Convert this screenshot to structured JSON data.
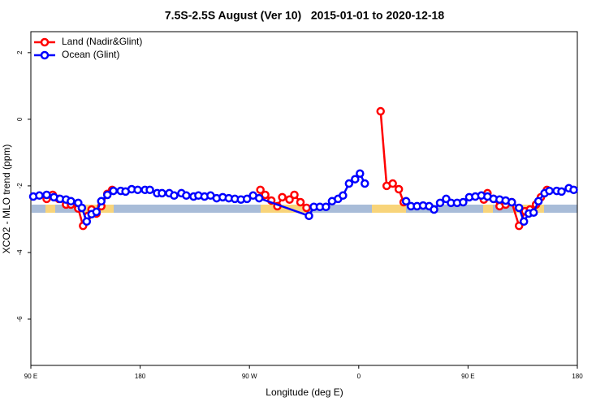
{
  "chart_data": {
    "type": "line",
    "title": "7.5S-2.5S August (Ver 10)   2015-01-01 to 2020-12-18",
    "xlabel": "Longitude (deg E)",
    "ylabel": "XCO2 - MLO trend (ppm)",
    "xlim": [
      90,
      540
    ],
    "ylim": [
      -7.39,
      2.63
    ],
    "xticks": [
      {
        "value": 90,
        "label": "90 E"
      },
      180,
      {
        "value": 270,
        "label": "90 W"
      },
      {
        "value": 360,
        "label": "0"
      },
      {
        "value": 450,
        "label": "90 E"
      },
      {
        "value": 540,
        "label": "180"
      }
    ],
    "yticks": [
      2,
      0,
      -2,
      -4,
      -6
    ],
    "legend": "topleft",
    "series": [
      {
        "name": "Land (Nadir&Glint)",
        "color": "#ff0000",
        "x": [
          103,
          108,
          113,
          119,
          123,
          129,
          133,
          137,
          140,
          144,
          148,
          153,
          157,
          null,
          279,
          283,
          288,
          293,
          297,
          303,
          307,
          312,
          317,
          null,
          378,
          383,
          388,
          393,
          397,
          null,
          463,
          466,
          471,
          476,
          481,
          486,
          492,
          497,
          501,
          506,
          510,
          515
        ],
        "values": [
          -2.39,
          -2.27,
          -2.39,
          -2.56,
          -2.56,
          -2.68,
          -3.2,
          -2.9,
          -2.71,
          -2.83,
          -2.61,
          -2.24,
          -2.12,
          null,
          -2.12,
          -2.27,
          -2.44,
          -2.61,
          -2.34,
          -2.41,
          -2.27,
          -2.49,
          -2.66,
          null,
          0.24,
          -2.0,
          -1.93,
          -2.1,
          -2.49,
          null,
          -2.41,
          -2.22,
          -2.39,
          -2.61,
          -2.56,
          -2.49,
          -3.2,
          -2.76,
          -2.71,
          -2.56,
          -2.34,
          -2.12
        ]
      },
      {
        "name": "Ocean (Glint)",
        "color": "#0000ff",
        "x": [
          92,
          97,
          103,
          109,
          114,
          119,
          123,
          129,
          132,
          136,
          140,
          144,
          148,
          153,
          158,
          164,
          168,
          173,
          178,
          184,
          188,
          194,
          198,
          204,
          208,
          214,
          218,
          224,
          228,
          233,
          238,
          243,
          248,
          253,
          258,
          263,
          268,
          273,
          278,
          319,
          323,
          328,
          333,
          338,
          343,
          347,
          352,
          357,
          361,
          365,
          null,
          399,
          403,
          408,
          413,
          418,
          422,
          427,
          432,
          436,
          441,
          446,
          451,
          456,
          461,
          466,
          471,
          476,
          481,
          486,
          492,
          496,
          500,
          504,
          508,
          513,
          517,
          523,
          527,
          533,
          537
        ],
        "values": [
          -2.32,
          -2.29,
          -2.27,
          -2.34,
          -2.39,
          -2.41,
          -2.46,
          -2.51,
          -2.66,
          -3.07,
          -2.85,
          -2.78,
          -2.46,
          -2.27,
          -2.15,
          -2.15,
          -2.17,
          -2.1,
          -2.12,
          -2.12,
          -2.12,
          -2.22,
          -2.22,
          -2.22,
          -2.29,
          -2.22,
          -2.29,
          -2.32,
          -2.29,
          -2.32,
          -2.29,
          -2.37,
          -2.34,
          -2.37,
          -2.39,
          -2.41,
          -2.39,
          -2.29,
          -2.37,
          -2.9,
          -2.63,
          -2.63,
          -2.63,
          -2.46,
          -2.39,
          -2.29,
          -1.93,
          -1.8,
          -1.63,
          -1.93,
          null,
          -2.46,
          -2.61,
          -2.61,
          -2.59,
          -2.61,
          -2.71,
          -2.51,
          -2.39,
          -2.51,
          -2.51,
          -2.49,
          -2.34,
          -2.32,
          -2.29,
          -2.32,
          -2.39,
          -2.41,
          -2.44,
          -2.49,
          -2.66,
          -3.07,
          -2.83,
          -2.8,
          -2.46,
          -2.22,
          -2.15,
          -2.15,
          -2.17,
          -2.07,
          -2.12
        ]
      }
    ]
  }
}
